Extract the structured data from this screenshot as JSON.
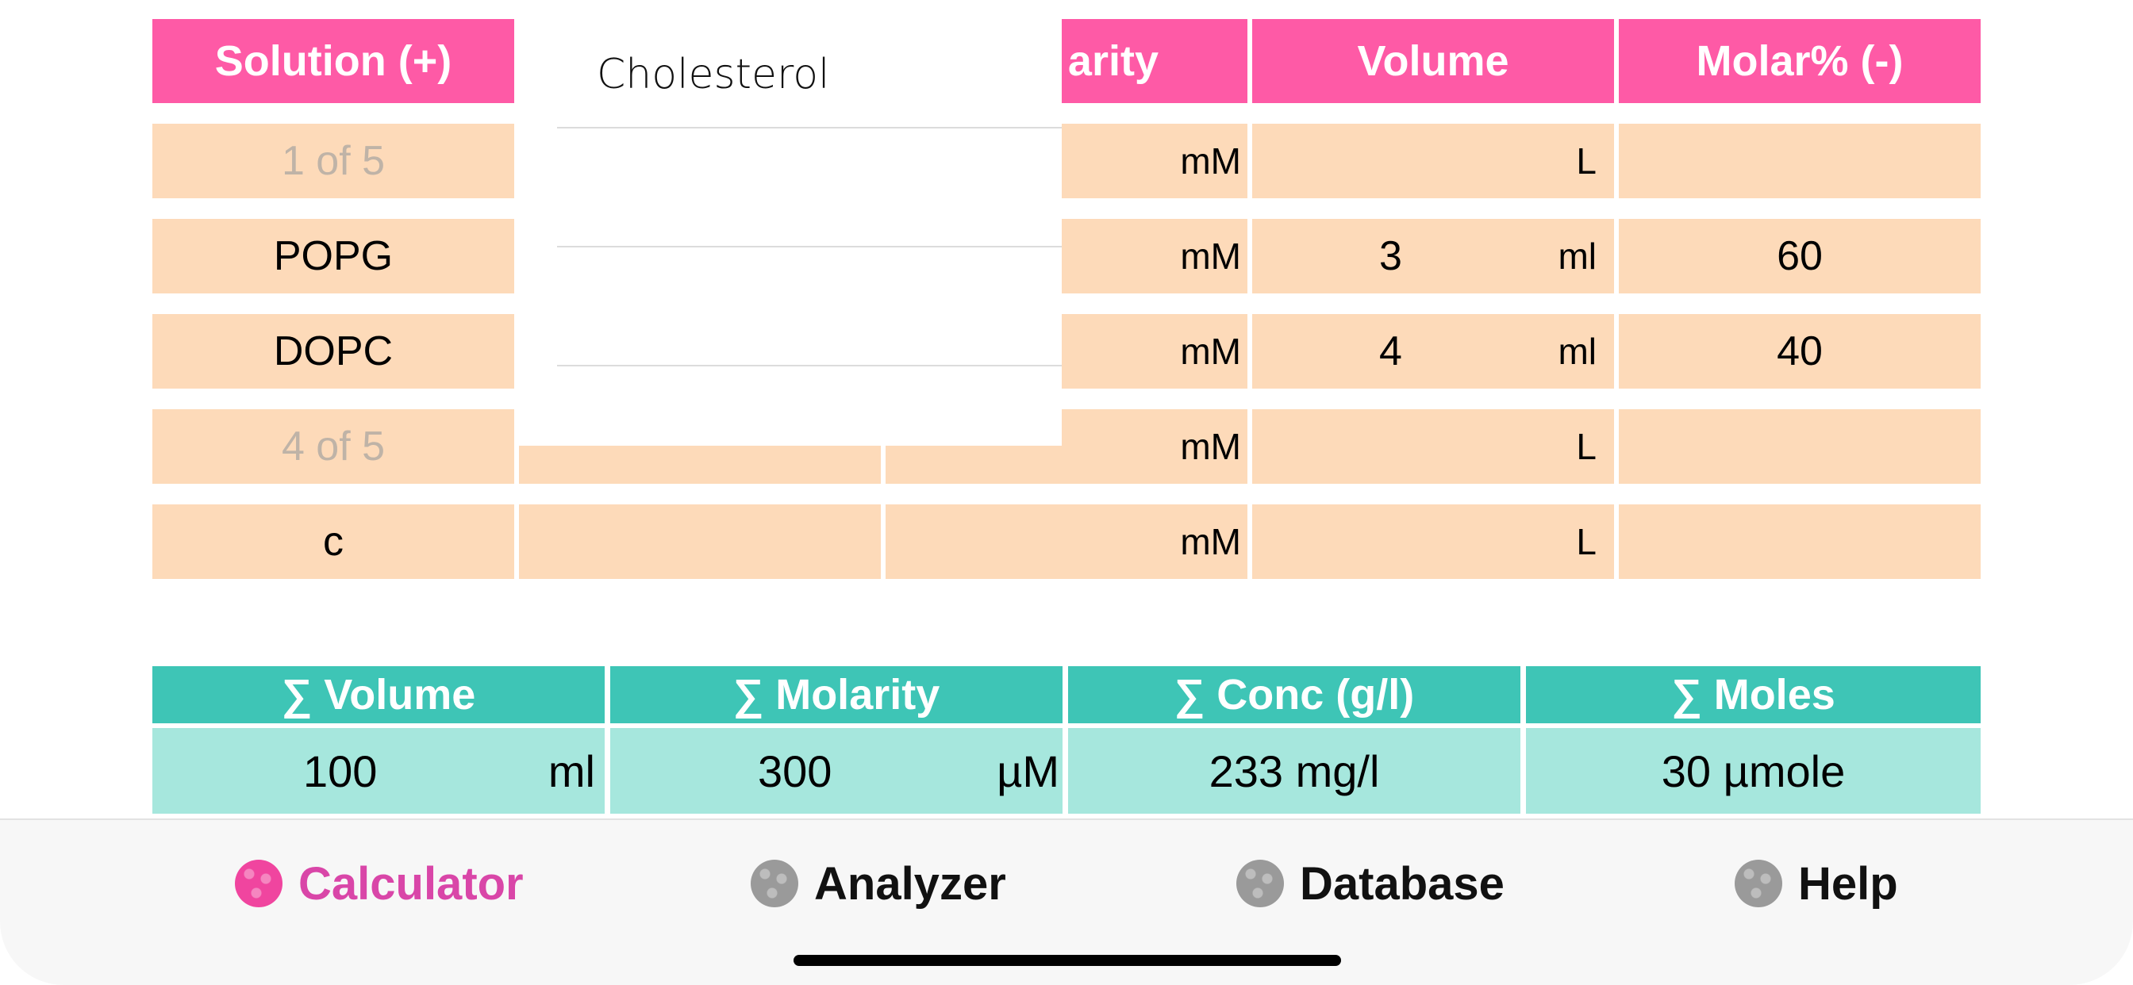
{
  "table": {
    "headers": [
      "Solution (+)",
      "",
      "Molarity",
      "Volume",
      "Molar% (-)"
    ],
    "header_visible_fragment": "arity",
    "rows": [
      {
        "solution": "1 of 5",
        "placeholder": true,
        "molarity_unit": "mM",
        "volume": "",
        "volume_unit": "L",
        "molar_pct": ""
      },
      {
        "solution": "POPG",
        "placeholder": false,
        "molarity_unit": "mM",
        "volume": "3",
        "volume_unit": "ml",
        "molar_pct": "60"
      },
      {
        "solution": "DOPC",
        "placeholder": false,
        "molarity_unit": "mM",
        "volume": "4",
        "volume_unit": "ml",
        "molar_pct": "40"
      },
      {
        "solution": "4 of 5",
        "placeholder": true,
        "molarity_unit": "mM",
        "volume": "",
        "volume_unit": "L",
        "molar_pct": ""
      },
      {
        "solution": "c",
        "placeholder": false,
        "molarity_unit": "mM",
        "volume": "",
        "volume_unit": "L",
        "molar_pct": ""
      }
    ]
  },
  "dropdown": {
    "items": [
      "Cholesterol",
      "",
      "",
      ""
    ]
  },
  "summary": {
    "headers": [
      "∑ Volume",
      "∑ Molarity",
      "∑  Conc (g/l)",
      "∑ Moles"
    ],
    "volume_value": "100",
    "volume_unit": "ml",
    "molarity_value": "300",
    "molarity_unit": "µM",
    "conc": "233 mg/l",
    "moles": "30 µmole"
  },
  "tabs": [
    {
      "label": "Calculator",
      "active": true
    },
    {
      "label": "Analyzer",
      "active": false
    },
    {
      "label": "Database",
      "active": false
    },
    {
      "label": "Help",
      "active": false
    }
  ],
  "colors": {
    "header_pink": "#fe5aa6",
    "cell_peach": "#fddab9",
    "summary_header_teal": "#3ec5b6",
    "summary_cell_teal": "#a6e7dd",
    "tab_active": "#d946a8",
    "tab_inactive_icon": "#9a9a9a",
    "active_icon": "#f0459f"
  }
}
